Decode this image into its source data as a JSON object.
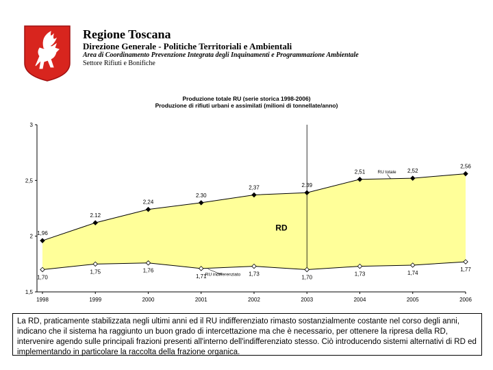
{
  "header": {
    "org_name": "Regione Toscana",
    "department": "Direzione Generale - Politiche Territoriali e Ambientali",
    "area": "Area di Coordinamento Prevenzione Integrata degli Inquinamenti e Programmazione Ambientale",
    "sector": "Settore Rifiuti e Bonifiche",
    "logo_icon": "winged-horse-icon",
    "logo_color": "#d8251e"
  },
  "chart_data": {
    "type": "area",
    "title": "Produzione totale RU (serie storica 1998-2006)",
    "subtitle": "Produzione di rifiuti urbani e assimilati (milioni di tonnellate/anno)",
    "x": [
      "1998",
      "1999",
      "2000",
      "2001",
      "2002",
      "2003",
      "2004",
      "2005",
      "2006"
    ],
    "series": [
      {
        "name": "RU totale",
        "values": [
          1.96,
          2.12,
          2.24,
          2.3,
          2.37,
          2.39,
          2.51,
          2.52,
          2.56
        ],
        "labels": [
          "1,96",
          "2.12",
          "2,24",
          "2.30",
          "2,37",
          "2.39",
          "2,51",
          "2,52",
          "2,56"
        ]
      },
      {
        "name": "RU indifferenziato",
        "values": [
          1.7,
          1.75,
          1.76,
          1.71,
          1.73,
          1.7,
          1.73,
          1.74,
          1.77
        ],
        "labels": [
          "1,70",
          "1,75",
          "1,76",
          "1,71",
          "1,73",
          "1,70",
          "1,73",
          "1,74",
          "1,77"
        ]
      }
    ],
    "area_label": "RD",
    "yticks": [
      "1,5",
      "2",
      "2,5",
      "3"
    ],
    "ylim": [
      1.5,
      3.0
    ],
    "fill_color": "#ffff99",
    "grid": false
  },
  "caption": "La RD, praticamente stabilizzata negli ultimi anni ed il RU indifferenziato rimasto sostanzialmente costante nel corso degli anni, indicano che il sistema ha raggiunto un buon grado di intercettazione ma che è necessario, per ottenere la ripresa della RD, intervenire agendo sulle principali frazioni presenti all'interno dell'indifferenziato stesso. Ciò introducendo sistemi alternativi di RD ed implementando in particolare la raccolta della frazione organica."
}
